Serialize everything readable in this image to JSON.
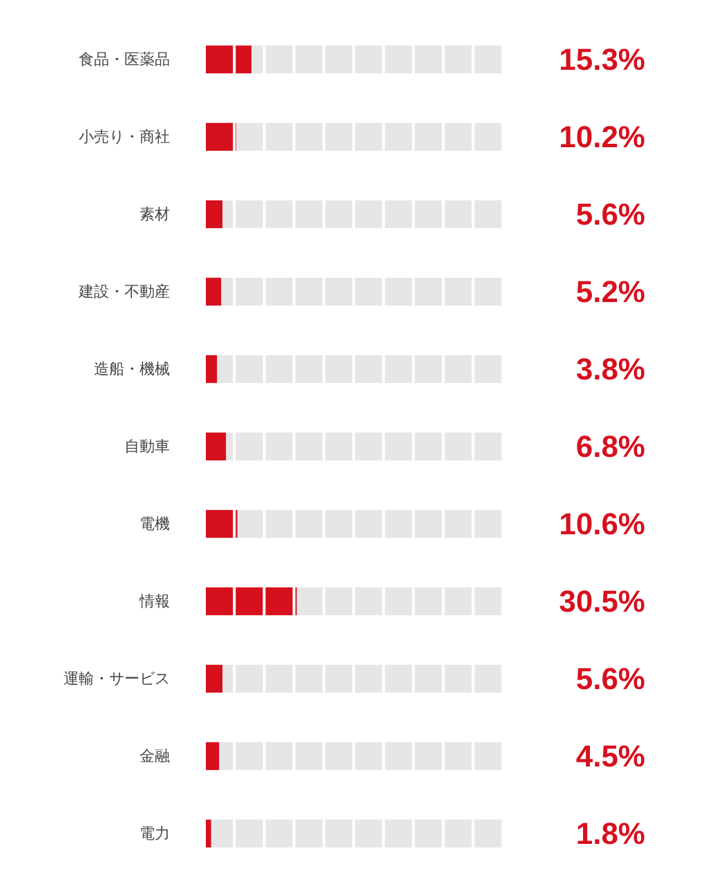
{
  "chart_data": {
    "type": "bar",
    "orientation": "horizontal",
    "categories": [
      "食品・医薬品",
      "小売り・商社",
      "素材",
      "建設・不動産",
      "造船・機械",
      "自動車",
      "電機",
      "情報",
      "運輸・サービス",
      "金融",
      "電力"
    ],
    "stacked": true,
    "series": [
      {
        "color": "#d7101e",
        "values": [
          15.3,
          10.2,
          5.6,
          5.2,
          3.8,
          6.8,
          10.6,
          30.5,
          5.6,
          4.5,
          1.8
        ],
        "value_labels": [
          "15.3%",
          "10.2%",
          "5.6%",
          "5.2%",
          "3.8%",
          "6.8%",
          "10.6%",
          "30.5%",
          "5.6%",
          "4.5%",
          "1.8%"
        ]
      },
      {
        "color": "#e6e6e6",
        "values": [
          84.7,
          89.8,
          94.4,
          94.8,
          96.2,
          93.2,
          89.4,
          69.5,
          94.4,
          95.5,
          98.2
        ]
      }
    ],
    "xlim": [
      0,
      100
    ],
    "tick_labels": "y"
  }
}
